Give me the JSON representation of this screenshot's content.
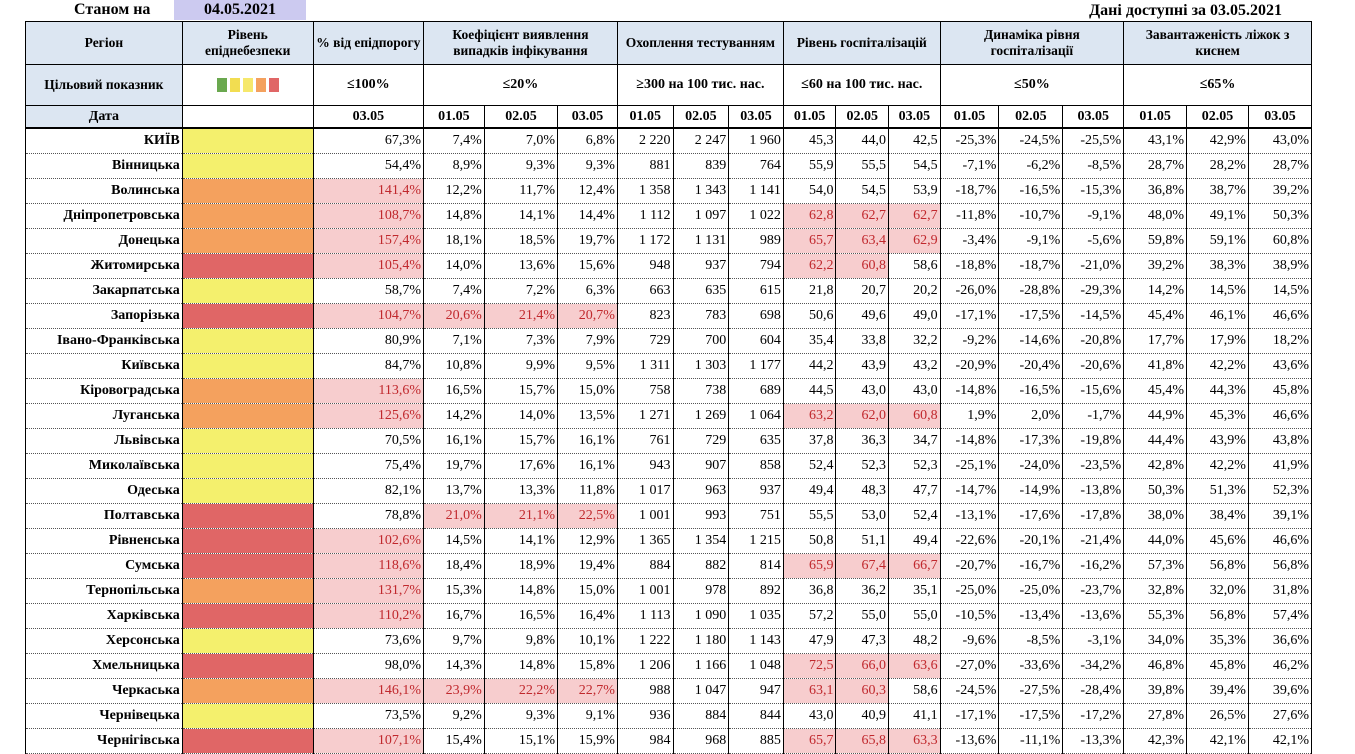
{
  "header": {
    "as_of_label": "Станом на",
    "as_of_date": "04.05.2021",
    "available_label": "Дані доступні за 03.05.2021"
  },
  "columns": {
    "region": "Регіон",
    "level": "Рівень епіднебезпеки",
    "threshold": "% від епідпорогу",
    "detection": "Коефіцієнт виявлення випадків інфікування",
    "testing": "Охоплення тестуванням",
    "hosp": "Рівень госпіталізацій",
    "hosp_dyn": "Динаміка рівня госпіталізації",
    "oxygen": "Завантаженість ліжок з киснем"
  },
  "targets": {
    "label": "Цільовий показник",
    "threshold": "≤100%",
    "detection": "≤20%",
    "testing": "≥300 на 100 тис. нас.",
    "hosp": "≤60 на 100 тис. нас.",
    "hosp_dyn": "≤50%",
    "oxygen": "≤65%"
  },
  "legend_colors": [
    "#6aa84f",
    "#f2dd51",
    "#f6e86c",
    "#f4a15e",
    "#e06666"
  ],
  "level_colors": {
    "yellow": "#f4f06d",
    "orange": "#f4a15e",
    "red": "#e06666"
  },
  "dates": {
    "label": "Дата",
    "threshold": [
      "03.05"
    ],
    "multi": [
      "01.05",
      "02.05",
      "03.05"
    ]
  },
  "rows": [
    {
      "region": "КИЇВ",
      "level": "yellow",
      "threshold": "67,3%",
      "detection": [
        "7,4%",
        "7,0%",
        "6,8%"
      ],
      "testing": [
        "2 220",
        "2 247",
        "1 960"
      ],
      "hosp": [
        "45,3",
        "44,0",
        "42,5"
      ],
      "hosp_dyn": [
        "-25,3%",
        "-24,5%",
        "-25,5%"
      ],
      "oxygen": [
        "43,1%",
        "42,9%",
        "43,0%"
      ]
    },
    {
      "region": "Вінницька",
      "level": "yellow",
      "threshold": "54,4%",
      "detection": [
        "8,9%",
        "9,3%",
        "9,3%"
      ],
      "testing": [
        "881",
        "839",
        "764"
      ],
      "hosp": [
        "55,9",
        "55,5",
        "54,5"
      ],
      "hosp_dyn": [
        "-7,1%",
        "-6,2%",
        "-8,5%"
      ],
      "oxygen": [
        "28,7%",
        "28,2%",
        "28,7%"
      ]
    },
    {
      "region": "Волинська",
      "level": "orange",
      "threshold": "141,4%",
      "detection": [
        "12,2%",
        "11,7%",
        "12,4%"
      ],
      "testing": [
        "1 358",
        "1 343",
        "1 141"
      ],
      "hosp": [
        "54,0",
        "54,5",
        "53,9"
      ],
      "hosp_dyn": [
        "-18,7%",
        "-16,5%",
        "-15,3%"
      ],
      "oxygen": [
        "36,8%",
        "38,7%",
        "39,2%"
      ]
    },
    {
      "region": "Дніпропетровська",
      "level": "orange",
      "threshold": "108,7%",
      "detection": [
        "14,8%",
        "14,1%",
        "14,4%"
      ],
      "testing": [
        "1 112",
        "1 097",
        "1 022"
      ],
      "hosp": [
        "62,8",
        "62,7",
        "62,7"
      ],
      "hosp_dyn": [
        "-11,8%",
        "-10,7%",
        "-9,1%"
      ],
      "oxygen": [
        "48,0%",
        "49,1%",
        "50,3%"
      ]
    },
    {
      "region": "Донецька",
      "level": "orange",
      "threshold": "157,4%",
      "detection": [
        "18,1%",
        "18,5%",
        "19,7%"
      ],
      "testing": [
        "1 172",
        "1 131",
        "989"
      ],
      "hosp": [
        "65,7",
        "63,4",
        "62,9"
      ],
      "hosp_dyn": [
        "-3,4%",
        "-9,1%",
        "-5,6%"
      ],
      "oxygen": [
        "59,8%",
        "59,1%",
        "60,8%"
      ]
    },
    {
      "region": "Житомирська",
      "level": "red",
      "threshold": "105,4%",
      "detection": [
        "14,0%",
        "13,6%",
        "15,6%"
      ],
      "testing": [
        "948",
        "937",
        "794"
      ],
      "hosp": [
        "62,2",
        "60,8",
        "58,6"
      ],
      "hosp_dyn": [
        "-18,8%",
        "-18,7%",
        "-21,0%"
      ],
      "oxygen": [
        "39,2%",
        "38,3%",
        "38,9%"
      ]
    },
    {
      "region": "Закарпатська",
      "level": "yellow",
      "threshold": "58,7%",
      "detection": [
        "7,4%",
        "7,2%",
        "6,3%"
      ],
      "testing": [
        "663",
        "635",
        "615"
      ],
      "hosp": [
        "21,8",
        "20,7",
        "20,2"
      ],
      "hosp_dyn": [
        "-26,0%",
        "-28,8%",
        "-29,3%"
      ],
      "oxygen": [
        "14,2%",
        "14,5%",
        "14,5%"
      ]
    },
    {
      "region": "Запорізька",
      "level": "red",
      "threshold": "104,7%",
      "detection": [
        "20,6%",
        "21,4%",
        "20,7%"
      ],
      "testing": [
        "823",
        "783",
        "698"
      ],
      "hosp": [
        "50,6",
        "49,6",
        "49,0"
      ],
      "hosp_dyn": [
        "-17,1%",
        "-17,5%",
        "-14,5%"
      ],
      "oxygen": [
        "45,4%",
        "46,1%",
        "46,6%"
      ]
    },
    {
      "region": "Івано-Франківська",
      "level": "yellow",
      "threshold": "80,9%",
      "detection": [
        "7,1%",
        "7,3%",
        "7,9%"
      ],
      "testing": [
        "729",
        "700",
        "604"
      ],
      "hosp": [
        "35,4",
        "33,8",
        "32,2"
      ],
      "hosp_dyn": [
        "-9,2%",
        "-14,6%",
        "-20,8%"
      ],
      "oxygen": [
        "17,7%",
        "17,9%",
        "18,2%"
      ]
    },
    {
      "region": "Київська",
      "level": "yellow",
      "threshold": "84,7%",
      "detection": [
        "10,8%",
        "9,9%",
        "9,5%"
      ],
      "testing": [
        "1 311",
        "1 303",
        "1 177"
      ],
      "hosp": [
        "44,2",
        "43,9",
        "43,2"
      ],
      "hosp_dyn": [
        "-20,9%",
        "-20,4%",
        "-20,6%"
      ],
      "oxygen": [
        "41,8%",
        "42,2%",
        "43,6%"
      ]
    },
    {
      "region": "Кіровоградська",
      "level": "orange",
      "threshold": "113,6%",
      "detection": [
        "16,5%",
        "15,7%",
        "15,0%"
      ],
      "testing": [
        "758",
        "738",
        "689"
      ],
      "hosp": [
        "44,5",
        "43,0",
        "43,0"
      ],
      "hosp_dyn": [
        "-14,8%",
        "-16,5%",
        "-15,6%"
      ],
      "oxygen": [
        "45,4%",
        "44,3%",
        "45,8%"
      ]
    },
    {
      "region": "Луганська",
      "level": "orange",
      "threshold": "125,6%",
      "detection": [
        "14,2%",
        "14,0%",
        "13,5%"
      ],
      "testing": [
        "1 271",
        "1 269",
        "1 064"
      ],
      "hosp": [
        "63,2",
        "62,0",
        "60,8"
      ],
      "hosp_dyn": [
        "1,9%",
        "2,0%",
        "-1,7%"
      ],
      "oxygen": [
        "44,9%",
        "45,3%",
        "46,6%"
      ]
    },
    {
      "region": "Львівська",
      "level": "yellow",
      "threshold": "70,5%",
      "detection": [
        "16,1%",
        "15,7%",
        "16,1%"
      ],
      "testing": [
        "761",
        "729",
        "635"
      ],
      "hosp": [
        "37,8",
        "36,3",
        "34,7"
      ],
      "hosp_dyn": [
        "-14,8%",
        "-17,3%",
        "-19,8%"
      ],
      "oxygen": [
        "44,4%",
        "43,9%",
        "43,8%"
      ]
    },
    {
      "region": "Миколаївська",
      "level": "yellow",
      "threshold": "75,4%",
      "detection": [
        "19,7%",
        "17,6%",
        "16,1%"
      ],
      "testing": [
        "943",
        "907",
        "858"
      ],
      "hosp": [
        "52,4",
        "52,3",
        "52,3"
      ],
      "hosp_dyn": [
        "-25,1%",
        "-24,0%",
        "-23,5%"
      ],
      "oxygen": [
        "42,8%",
        "42,2%",
        "41,9%"
      ]
    },
    {
      "region": "Одеська",
      "level": "yellow",
      "threshold": "82,1%",
      "detection": [
        "13,7%",
        "13,3%",
        "11,8%"
      ],
      "testing": [
        "1 017",
        "963",
        "937"
      ],
      "hosp": [
        "49,4",
        "48,3",
        "47,7"
      ],
      "hosp_dyn": [
        "-14,7%",
        "-14,9%",
        "-13,8%"
      ],
      "oxygen": [
        "50,3%",
        "51,3%",
        "52,3%"
      ]
    },
    {
      "region": "Полтавська",
      "level": "red",
      "threshold": "78,8%",
      "detection": [
        "21,0%",
        "21,1%",
        "22,5%"
      ],
      "testing": [
        "1 001",
        "993",
        "751"
      ],
      "hosp": [
        "55,5",
        "53,0",
        "52,4"
      ],
      "hosp_dyn": [
        "-13,1%",
        "-17,6%",
        "-17,8%"
      ],
      "oxygen": [
        "38,0%",
        "38,4%",
        "39,1%"
      ]
    },
    {
      "region": "Рівненська",
      "level": "red",
      "threshold": "102,6%",
      "detection": [
        "14,5%",
        "14,1%",
        "12,9%"
      ],
      "testing": [
        "1 365",
        "1 354",
        "1 215"
      ],
      "hosp": [
        "50,8",
        "51,1",
        "49,4"
      ],
      "hosp_dyn": [
        "-22,6%",
        "-20,1%",
        "-21,4%"
      ],
      "oxygen": [
        "44,0%",
        "45,6%",
        "46,6%"
      ]
    },
    {
      "region": "Сумська",
      "level": "red",
      "threshold": "118,6%",
      "detection": [
        "18,4%",
        "18,9%",
        "19,4%"
      ],
      "testing": [
        "884",
        "882",
        "814"
      ],
      "hosp": [
        "65,9",
        "67,4",
        "66,7"
      ],
      "hosp_dyn": [
        "-20,7%",
        "-16,7%",
        "-16,2%"
      ],
      "oxygen": [
        "57,3%",
        "56,8%",
        "56,8%"
      ]
    },
    {
      "region": "Тернопільська",
      "level": "orange",
      "threshold": "131,7%",
      "detection": [
        "15,3%",
        "14,8%",
        "15,0%"
      ],
      "testing": [
        "1 001",
        "978",
        "892"
      ],
      "hosp": [
        "36,8",
        "36,2",
        "35,1"
      ],
      "hosp_dyn": [
        "-25,0%",
        "-25,0%",
        "-23,7%"
      ],
      "oxygen": [
        "32,8%",
        "32,0%",
        "31,8%"
      ]
    },
    {
      "region": "Харківська",
      "level": "red",
      "threshold": "110,2%",
      "detection": [
        "16,7%",
        "16,5%",
        "16,4%"
      ],
      "testing": [
        "1 113",
        "1 090",
        "1 035"
      ],
      "hosp": [
        "57,2",
        "55,0",
        "55,0"
      ],
      "hosp_dyn": [
        "-10,5%",
        "-13,4%",
        "-13,6%"
      ],
      "oxygen": [
        "55,3%",
        "56,8%",
        "57,4%"
      ]
    },
    {
      "region": "Херсонська",
      "level": "yellow",
      "threshold": "73,6%",
      "detection": [
        "9,7%",
        "9,8%",
        "10,1%"
      ],
      "testing": [
        "1 222",
        "1 180",
        "1 143"
      ],
      "hosp": [
        "47,9",
        "47,3",
        "48,2"
      ],
      "hosp_dyn": [
        "-9,6%",
        "-8,5%",
        "-3,1%"
      ],
      "oxygen": [
        "34,0%",
        "35,3%",
        "36,6%"
      ]
    },
    {
      "region": "Хмельницька",
      "level": "red",
      "threshold": "98,0%",
      "detection": [
        "14,3%",
        "14,8%",
        "15,8%"
      ],
      "testing": [
        "1 206",
        "1 166",
        "1 048"
      ],
      "hosp": [
        "72,5",
        "66,0",
        "63,6"
      ],
      "hosp_dyn": [
        "-27,0%",
        "-33,6%",
        "-34,2%"
      ],
      "oxygen": [
        "46,8%",
        "45,8%",
        "46,2%"
      ]
    },
    {
      "region": "Черкаська",
      "level": "orange",
      "threshold": "146,1%",
      "detection": [
        "23,9%",
        "22,2%",
        "22,7%"
      ],
      "testing": [
        "988",
        "1 047",
        "947"
      ],
      "hosp": [
        "63,1",
        "60,3",
        "58,6"
      ],
      "hosp_dyn": [
        "-24,5%",
        "-27,5%",
        "-28,4%"
      ],
      "oxygen": [
        "39,8%",
        "39,4%",
        "39,6%"
      ]
    },
    {
      "region": "Чернівецька",
      "level": "yellow",
      "threshold": "73,5%",
      "detection": [
        "9,2%",
        "9,3%",
        "9,1%"
      ],
      "testing": [
        "936",
        "884",
        "844"
      ],
      "hosp": [
        "43,0",
        "40,9",
        "41,1"
      ],
      "hosp_dyn": [
        "-17,1%",
        "-17,5%",
        "-17,2%"
      ],
      "oxygen": [
        "27,8%",
        "26,5%",
        "27,6%"
      ]
    },
    {
      "region": "Чернігівська",
      "level": "red",
      "threshold": "107,1%",
      "detection": [
        "15,4%",
        "15,1%",
        "15,9%"
      ],
      "testing": [
        "984",
        "968",
        "885"
      ],
      "hosp": [
        "65,7",
        "65,8",
        "63,3"
      ],
      "hosp_dyn": [
        "-13,6%",
        "-11,1%",
        "-13,3%"
      ],
      "oxygen": [
        "42,3%",
        "42,1%",
        "42,1%"
      ]
    }
  ]
}
